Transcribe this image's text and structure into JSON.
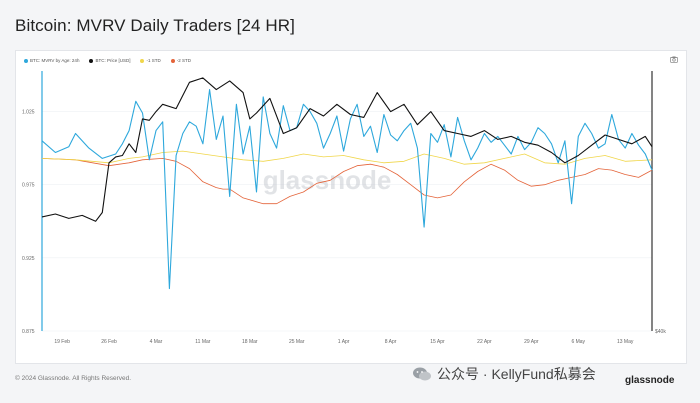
{
  "title": "Bitcoin: MVRV Daily Traders [24 HR]",
  "legend": [
    {
      "label": "BTC: MVRV by Age: 24h",
      "color": "#2ea8dc"
    },
    {
      "label": "BTC: Price [USD]",
      "color": "#111111"
    },
    {
      "label": "-1 STD",
      "color": "#f0d64a"
    },
    {
      "label": "-2 STD",
      "color": "#e4643a"
    }
  ],
  "watermark": "glassnode",
  "footer": {
    "copyright": "© 2024 Glassnode. All Rights Reserved.",
    "wechat": "公众号 · KellyFund私募会",
    "brand": "glassnode"
  },
  "colors": {
    "mvrv": "#2ea8dc",
    "price": "#111111",
    "std1": "#f0d64a",
    "std2": "#e4643a"
  },
  "chart_data": {
    "type": "line",
    "x_ticks": [
      "19 Feb",
      "26 Feb",
      "4 Mar",
      "11 Mar",
      "18 Mar",
      "25 Mar",
      "1 Apr",
      "8 Apr",
      "15 Apr",
      "22 Apr",
      "29 Apr",
      "6 May",
      "13 May"
    ],
    "y_ticks": [
      "1.025",
      "0.975",
      "0.925",
      "0.875"
    ],
    "y_ticks_right": [
      "$40k"
    ],
    "ylim": [
      0.875,
      1.05
    ],
    "x_days": [
      0,
      91
    ],
    "series": [
      {
        "name": "BTC: MVRV by Age: 24h",
        "key": "mvrv",
        "x": [
          0,
          2,
          4,
          5,
          7,
          9,
          11,
          12,
          13,
          14,
          15,
          16,
          17,
          18,
          19,
          20,
          21,
          22,
          23,
          24,
          25,
          26,
          27,
          28,
          29,
          30,
          31,
          32,
          33,
          34,
          35,
          36,
          37,
          38,
          39,
          40,
          41,
          42,
          43,
          44,
          45,
          46,
          47,
          48,
          49,
          50,
          51,
          52,
          53,
          54,
          55,
          56,
          57,
          58,
          59,
          60,
          61,
          62,
          63,
          64,
          65,
          66,
          67,
          68,
          69,
          70,
          71,
          72,
          73,
          74,
          75,
          76,
          77,
          78,
          79,
          80,
          81,
          82,
          83,
          84,
          85,
          86,
          87,
          88,
          89,
          90,
          91
        ],
        "y": [
          1.005,
          0.997,
          1.001,
          1.01,
          1.0,
          0.993,
          0.996,
          1.003,
          1.012,
          1.032,
          1.024,
          0.992,
          1.012,
          1.018,
          0.904,
          0.995,
          1.01,
          1.018,
          1.015,
          1.003,
          1.04,
          1.006,
          1.022,
          0.967,
          1.03,
          0.996,
          1.015,
          0.97,
          1.035,
          1.01,
          1.0,
          1.029,
          1.012,
          1.014,
          1.03,
          1.025,
          1.017,
          1.0,
          1.01,
          1.022,
          0.998,
          1.02,
          1.03,
          1.008,
          1.015,
          0.997,
          1.023,
          1.009,
          1.005,
          1.012,
          1.017,
          1.0,
          0.946,
          1.01,
          1.004,
          1.016,
          0.994,
          1.021,
          1.005,
          0.992,
          1.0,
          1.01,
          1.004,
          1.008,
          1.002,
          0.996,
          1.008,
          0.999,
          1.004,
          1.014,
          1.01,
          1.003,
          0.99,
          1.005,
          0.962,
          1.008,
          1.017,
          1.01,
          1.0,
          1.003,
          1.023,
          1.006,
          1.0,
          1.01,
          1.002,
          0.996,
          0.985
        ]
      },
      {
        "name": "BTC: Price [USD]",
        "key": "price",
        "x": [
          0,
          2,
          4,
          6,
          8,
          9,
          10,
          11,
          12,
          13,
          14,
          15,
          16,
          17,
          18,
          20,
          22,
          24,
          26,
          28,
          30,
          31,
          32,
          34,
          36,
          38,
          40,
          42,
          44,
          46,
          48,
          50,
          52,
          54,
          56,
          58,
          60,
          62,
          64,
          66,
          68,
          70,
          72,
          74,
          76,
          78,
          80,
          82,
          84,
          86,
          88,
          90,
          91
        ],
        "y": [
          0.953,
          0.955,
          0.952,
          0.954,
          0.95,
          0.956,
          0.99,
          0.994,
          0.995,
          1.003,
          0.997,
          1.02,
          1.019,
          1.025,
          1.03,
          1.027,
          1.045,
          1.048,
          1.04,
          1.046,
          1.038,
          1.02,
          1.024,
          1.034,
          1.01,
          1.014,
          1.027,
          1.022,
          1.03,
          1.023,
          1.021,
          1.038,
          1.025,
          1.03,
          1.016,
          1.025,
          1.012,
          1.01,
          1.008,
          1.012,
          1.006,
          1.008,
          1.004,
          1.002,
          0.997,
          0.99,
          0.995,
          1.002,
          1.009,
          1.006,
          1.003,
          1.008,
          1.001
        ]
      },
      {
        "name": "-1 STD",
        "key": "std1",
        "x": [
          0,
          5,
          10,
          13,
          15,
          18,
          21,
          24,
          27,
          30,
          33,
          36,
          39,
          42,
          45,
          48,
          51,
          54,
          57,
          60,
          63,
          66,
          69,
          72,
          75,
          78,
          81,
          84,
          87,
          91
        ],
        "y": [
          0.993,
          0.992,
          0.99,
          0.993,
          0.994,
          0.997,
          0.998,
          0.996,
          0.994,
          0.992,
          0.991,
          0.993,
          0.996,
          0.994,
          0.995,
          0.992,
          0.99,
          0.991,
          0.996,
          0.993,
          0.989,
          0.99,
          0.993,
          0.996,
          0.99,
          0.989,
          0.993,
          0.995,
          0.991,
          0.992
        ]
      },
      {
        "name": "-2 STD",
        "key": "std2",
        "x": [
          0,
          5,
          10,
          13,
          15,
          18,
          20,
          22,
          24,
          26,
          27,
          28,
          30,
          33,
          35,
          37,
          39,
          41,
          43,
          45,
          47,
          49,
          51,
          53,
          55,
          57,
          59,
          61,
          63,
          65,
          67,
          69,
          71,
          73,
          75,
          77,
          79,
          81,
          83,
          85,
          87,
          89,
          91
        ],
        "y": [
          0.993,
          0.992,
          0.988,
          0.99,
          0.992,
          0.993,
          0.991,
          0.986,
          0.977,
          0.973,
          0.972,
          0.972,
          0.966,
          0.962,
          0.962,
          0.967,
          0.97,
          0.976,
          0.978,
          0.984,
          0.988,
          0.989,
          0.987,
          0.982,
          0.975,
          0.968,
          0.966,
          0.968,
          0.977,
          0.984,
          0.989,
          0.985,
          0.978,
          0.974,
          0.975,
          0.978,
          0.98,
          0.982,
          0.986,
          0.985,
          0.982,
          0.98,
          0.985
        ]
      }
    ]
  }
}
